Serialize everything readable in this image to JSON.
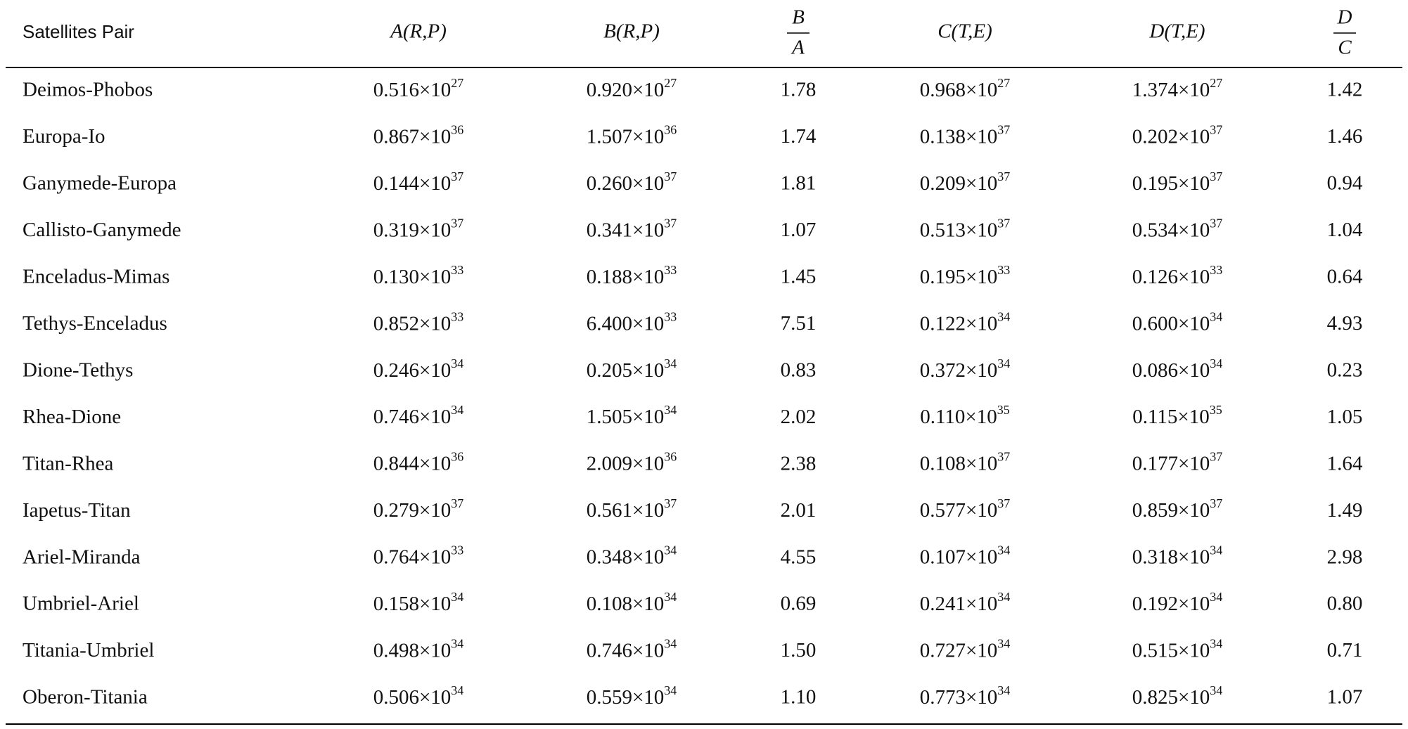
{
  "table": {
    "header": {
      "pair": "Satellites Pair",
      "columns": [
        {
          "text": "A(R,P)"
        },
        {
          "text": "B(R,P)"
        },
        {
          "numerator": "B",
          "denominator": "A"
        },
        {
          "text": "C(T,E)"
        },
        {
          "text": "D(T,E)"
        },
        {
          "numerator": "D",
          "denominator": "C"
        }
      ]
    },
    "rows": [
      {
        "pair": "Deimos-Phobos",
        "cells": [
          {
            "m": "0.516",
            "x": "×10",
            "e": "27"
          },
          {
            "m": "0.920",
            "x": "×10",
            "e": "27"
          },
          "1.78",
          {
            "m": "0.968",
            "x": "×10",
            "e": "27"
          },
          {
            "m": "1.374",
            "x": "×10",
            "e": "27"
          },
          "1.42"
        ]
      },
      {
        "pair": "Europa-Io",
        "cells": [
          {
            "m": "0.867",
            "x": "×10",
            "e": "36"
          },
          {
            "m": "1.507",
            "x": "×10",
            "e": "36"
          },
          "1.74",
          {
            "m": "0.138",
            "x": "×10",
            "e": "37"
          },
          {
            "m": "0.202",
            "x": "×10",
            "e": "37"
          },
          "1.46"
        ]
      },
      {
        "pair": "Ganymede-Europa",
        "cells": [
          {
            "m": "0.144",
            "x": "×10",
            "e": "37"
          },
          {
            "m": "0.260",
            "x": "×10",
            "e": "37"
          },
          "1.81",
          {
            "m": "0.209",
            "x": "×10",
            "e": "37"
          },
          {
            "m": "0.195",
            "x": "×10",
            "e": "37"
          },
          "0.94"
        ]
      },
      {
        "pair": "Callisto-Ganymede",
        "cells": [
          {
            "m": "0.319",
            "x": "×10",
            "e": "37"
          },
          {
            "m": "0.341",
            "x": "×10",
            "e": "37"
          },
          "1.07",
          {
            "m": "0.513",
            "x": "×10",
            "e": "37"
          },
          {
            "m": "0.534",
            "x": "×10",
            "e": "37"
          },
          "1.04"
        ]
      },
      {
        "pair": "Enceladus-Mimas",
        "cells": [
          {
            "m": "0.130",
            "x": "×10",
            "e": "33"
          },
          {
            "m": "0.188",
            "x": "×10",
            "e": "33"
          },
          "1.45",
          {
            "m": "0.195",
            "x": "×10",
            "e": "33"
          },
          {
            "m": "0.126",
            "x": "×10",
            "e": "33"
          },
          "0.64"
        ]
      },
      {
        "pair": "Tethys-Enceladus",
        "cells": [
          {
            "m": "0.852",
            "x": "×10",
            "e": "33"
          },
          {
            "m": "6.400",
            "x": "×10",
            "e": "33"
          },
          "7.51",
          {
            "m": "0.122",
            "x": "×10",
            "e": "34"
          },
          {
            "m": "0.600",
            "x": "×10",
            "e": "34"
          },
          "4.93"
        ]
      },
      {
        "pair": "Dione-Tethys",
        "cells": [
          {
            "m": "0.246",
            "x": "×10",
            "e": "34"
          },
          {
            "m": "0.205",
            "x": "×10",
            "e": "34"
          },
          "0.83",
          {
            "m": "0.372",
            "x": "×10",
            "e": "34"
          },
          {
            "m": "0.086",
            "x": "×10",
            "e": "34"
          },
          "0.23"
        ]
      },
      {
        "pair": "Rhea-Dione",
        "cells": [
          {
            "m": "0.746",
            "x": "×10",
            "e": "34"
          },
          {
            "m": "1.505",
            "x": "×10",
            "e": "34"
          },
          "2.02",
          {
            "m": "0.110",
            "x": "×10",
            "e": "35"
          },
          {
            "m": "0.115",
            "x": "×10",
            "e": "35"
          },
          "1.05"
        ]
      },
      {
        "pair": "Titan-Rhea",
        "cells": [
          {
            "m": "0.844",
            "x": "×10",
            "e": "36"
          },
          {
            "m": "2.009",
            "x": "×10",
            "e": "36"
          },
          "2.38",
          {
            "m": "0.108",
            "x": "×10",
            "e": "37"
          },
          {
            "m": "0.177",
            "x": "×10",
            "e": "37"
          },
          "1.64"
        ]
      },
      {
        "pair": "Iapetus-Titan",
        "cells": [
          {
            "m": "0.279",
            "x": "×10",
            "e": "37"
          },
          {
            "m": "0.561",
            "x": "×10",
            "e": "37"
          },
          "2.01",
          {
            "m": "0.577",
            "x": "×10",
            "e": "37"
          },
          {
            "m": "0.859",
            "x": "×10",
            "e": "37"
          },
          "1.49"
        ]
      },
      {
        "pair": "Ariel-Miranda",
        "cells": [
          {
            "m": "0.764",
            "x": "×10",
            "e": "33"
          },
          {
            "m": "0.348",
            "x": "×10",
            "e": "34"
          },
          "4.55",
          {
            "m": "0.107",
            "x": "×10",
            "e": "34"
          },
          {
            "m": "0.318",
            "x": "×10",
            "e": "34"
          },
          "2.98"
        ]
      },
      {
        "pair": "Umbriel-Ariel",
        "cells": [
          {
            "m": "0.158",
            "x": "×10",
            "e": "34"
          },
          {
            "m": "0.108",
            "x": "×10",
            "e": "34"
          },
          "0.69",
          {
            "m": "0.241",
            "x": "×10",
            "e": "34"
          },
          {
            "m": "0.192",
            "x": "×10",
            "e": "34"
          },
          "0.80"
        ]
      },
      {
        "pair": "Titania-Umbriel",
        "cells": [
          {
            "m": "0.498",
            "x": "×10",
            "e": "34"
          },
          {
            "m": "0.746",
            "x": "×10",
            "e": "34"
          },
          "1.50",
          {
            "m": "0.727",
            "x": "×10",
            "e": "34"
          },
          {
            "m": "0.515",
            "x": "×10",
            "e": "34"
          },
          "0.71"
        ]
      },
      {
        "pair": "Oberon-Titania",
        "cells": [
          {
            "m": "0.506",
            "x": "×10",
            "e": "34"
          },
          {
            "m": "0.559",
            "x": "×10",
            "e": "34"
          },
          "1.10",
          {
            "m": "0.773",
            "x": "×10",
            "e": "34"
          },
          {
            "m": "0.825",
            "x": "×10",
            "e": "34"
          },
          "1.07"
        ]
      }
    ]
  }
}
